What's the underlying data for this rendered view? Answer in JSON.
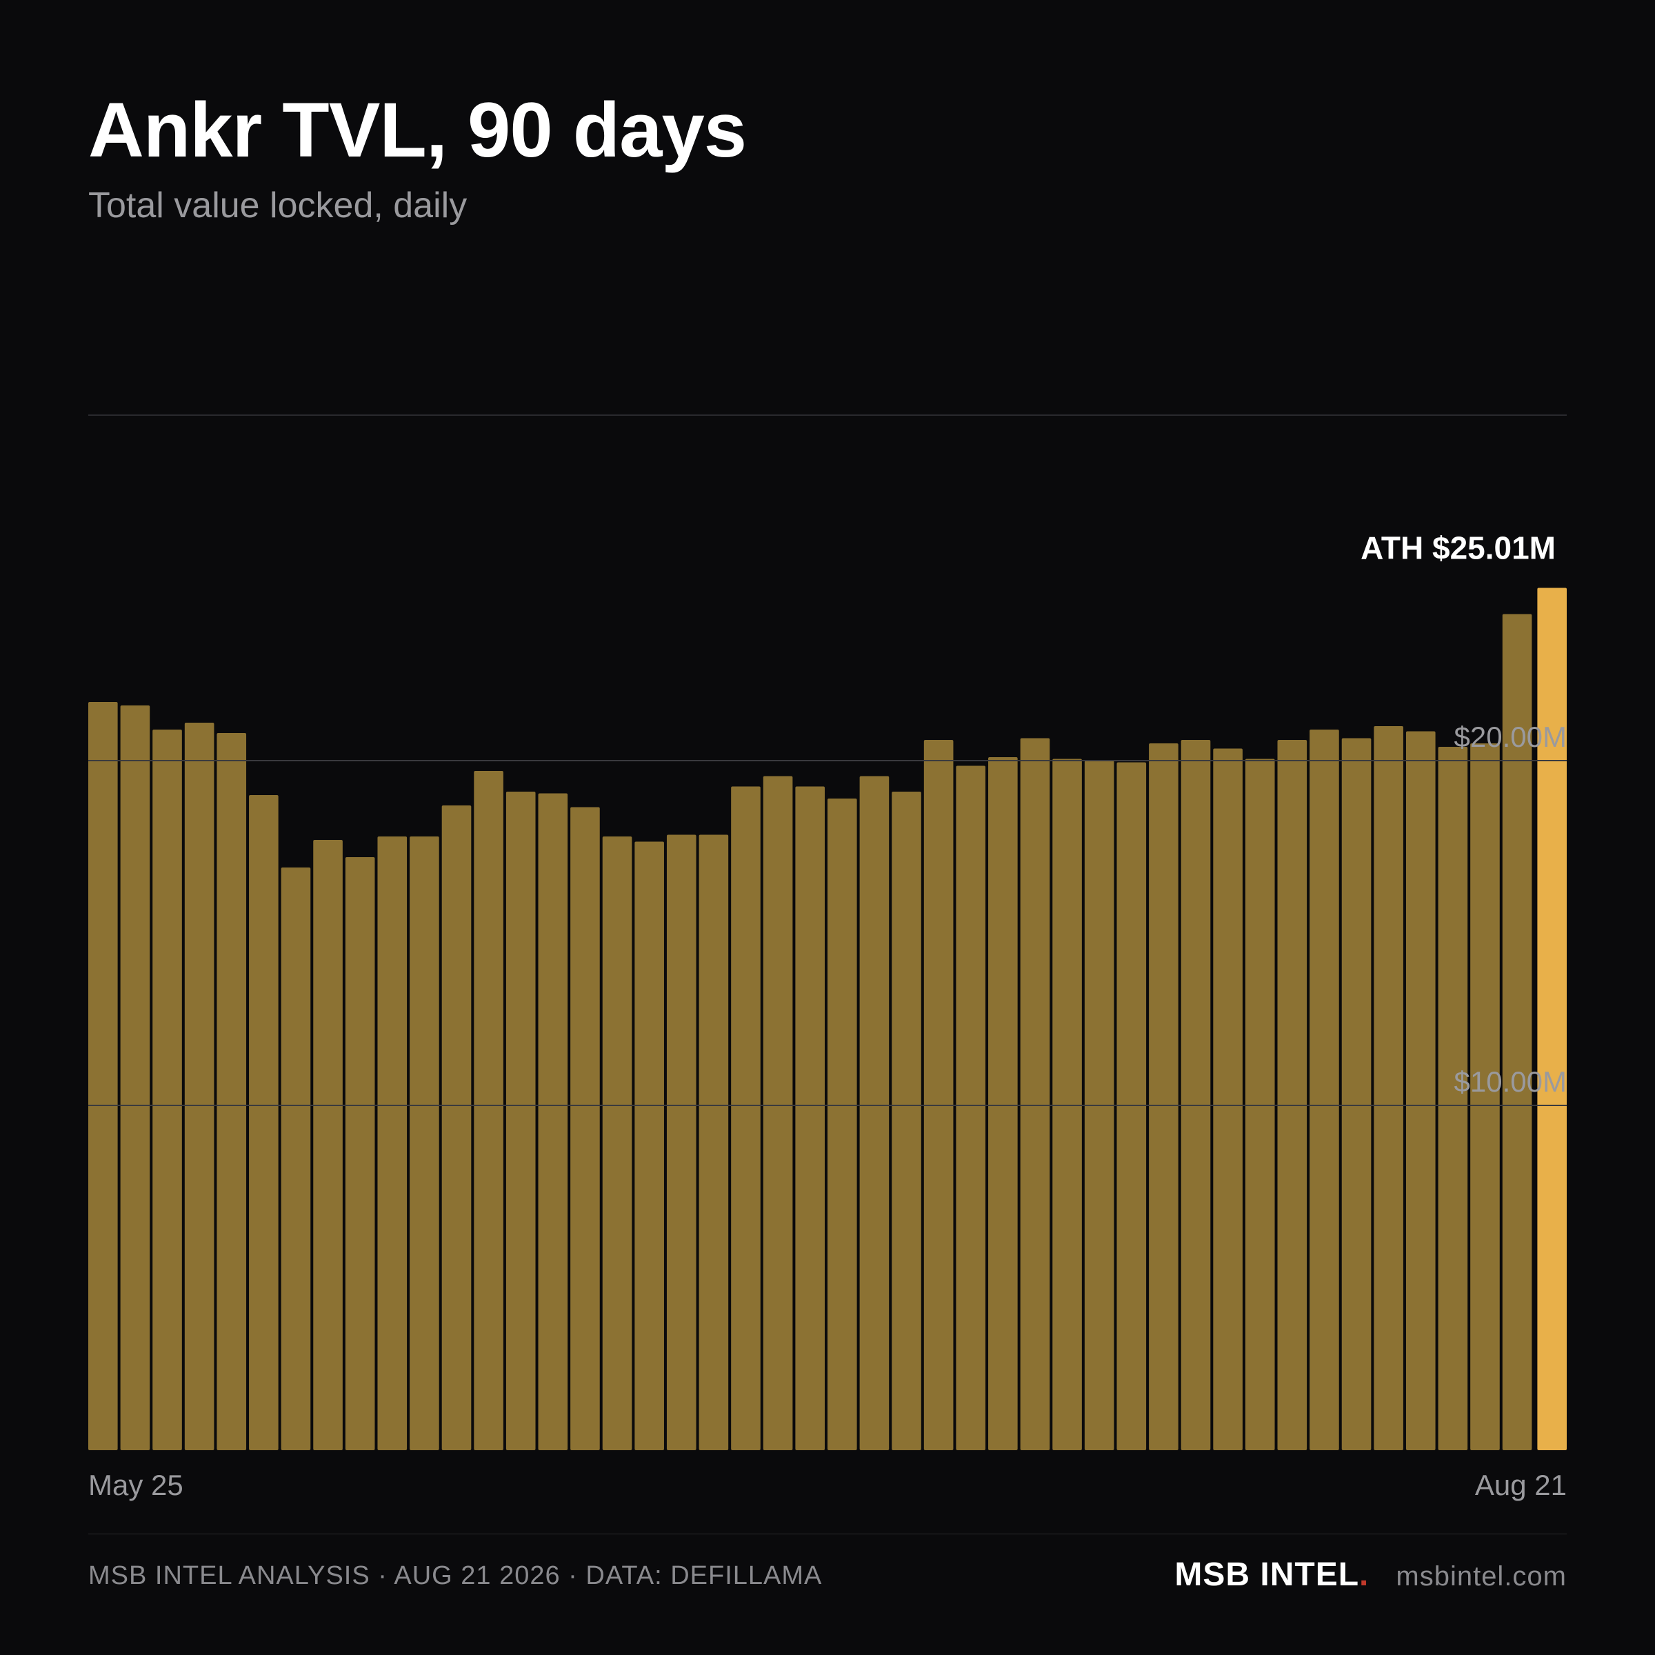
{
  "header": {
    "title": "Ankr TVL, 90 days",
    "subtitle": "Total value locked, daily"
  },
  "footer": {
    "source": "MSB INTEL ANALYSIS · AUG 21 2026 · DATA: DEFILLAMA",
    "brand": "MSB INTEL",
    "brand_dot": ".",
    "url": "msbintel.com"
  },
  "colors": {
    "background": "#0a0a0c",
    "bar": "#8c7233",
    "bar_highlight": "#e8b04a",
    "grid": "#3a3a3e",
    "brand_dot": "#c0392b"
  },
  "chart_data": {
    "type": "bar",
    "title": "Ankr TVL, 90 days",
    "subtitle": "Total value locked, daily",
    "x_labels": [
      "May 25",
      "Aug 21"
    ],
    "y_ticks": [
      {
        "value": 10,
        "label": "$10.00M"
      },
      {
        "value": 20,
        "label": "$20.00M"
      }
    ],
    "ylim": [
      0,
      30
    ],
    "grid": true,
    "annotation": {
      "label": "ATH $25.01M",
      "value": 25.01,
      "bar_index": 45
    },
    "values": [
      21.7,
      21.6,
      20.9,
      21.1,
      20.8,
      19.0,
      16.9,
      17.7,
      17.2,
      17.8,
      17.8,
      18.7,
      19.7,
      19.1,
      19.05,
      18.65,
      17.8,
      17.65,
      17.85,
      17.85,
      19.25,
      19.55,
      19.25,
      18.9,
      19.55,
      19.1,
      20.6,
      19.85,
      20.1,
      20.65,
      20.05,
      20.0,
      19.95,
      20.5,
      20.6,
      20.35,
      20.05,
      20.6,
      20.9,
      20.65,
      21.0,
      20.85,
      20.4,
      20.5,
      24.25,
      25.01
    ]
  }
}
